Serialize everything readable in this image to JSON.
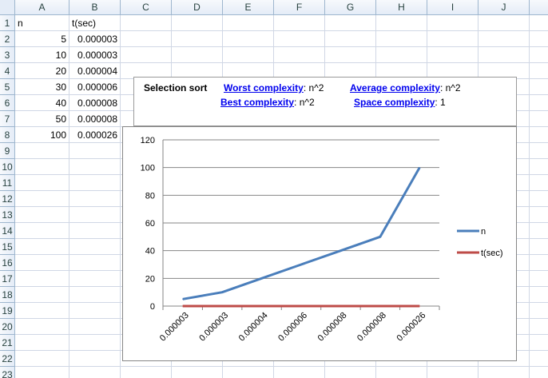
{
  "columns": [
    "A",
    "B",
    "C",
    "D",
    "E",
    "F",
    "G",
    "H",
    "I",
    "J"
  ],
  "rows": [
    "1",
    "2",
    "3",
    "4",
    "5",
    "6",
    "7",
    "8",
    "9",
    "10",
    "11",
    "12",
    "13",
    "14",
    "15",
    "16",
    "17",
    "18",
    "19",
    "20",
    "21",
    "22",
    "23"
  ],
  "table": {
    "headers": {
      "a": "n",
      "b": "t(sec)"
    },
    "data": [
      {
        "n": "5",
        "t": "0.000003"
      },
      {
        "n": "10",
        "t": "0.000003"
      },
      {
        "n": "20",
        "t": "0.000004"
      },
      {
        "n": "30",
        "t": "0.000006"
      },
      {
        "n": "40",
        "t": "0.000008"
      },
      {
        "n": "50",
        "t": "0.000008"
      },
      {
        "n": "100",
        "t": "0.000026"
      }
    ]
  },
  "info": {
    "title": "Selection sort",
    "worst_label": "Worst complexity",
    "worst_value": ": n^2",
    "average_label": "Average complexity",
    "average_value": ": n^2",
    "best_label": "Best complexity",
    "best_value": ": n^2",
    "space_label": "Space complexity",
    "space_value": ": 1"
  },
  "chart_data": {
    "type": "line",
    "categories": [
      "0.000003",
      "0.000003",
      "0.000004",
      "0.000006",
      "0.000008",
      "0.000008",
      "0.000026"
    ],
    "series": [
      {
        "name": "n",
        "values": [
          5,
          10,
          20,
          30,
          40,
          50,
          100
        ],
        "color": "#4a7ebb"
      },
      {
        "name": "t(sec)",
        "values": [
          3e-06,
          3e-06,
          4e-06,
          6e-06,
          8e-06,
          8e-06,
          2.6e-05
        ],
        "color": "#be4b48"
      }
    ],
    "yticks": [
      "0",
      "20",
      "40",
      "60",
      "80",
      "100",
      "120"
    ],
    "ylim": [
      0,
      120
    ],
    "grid": true,
    "legend": "right"
  }
}
